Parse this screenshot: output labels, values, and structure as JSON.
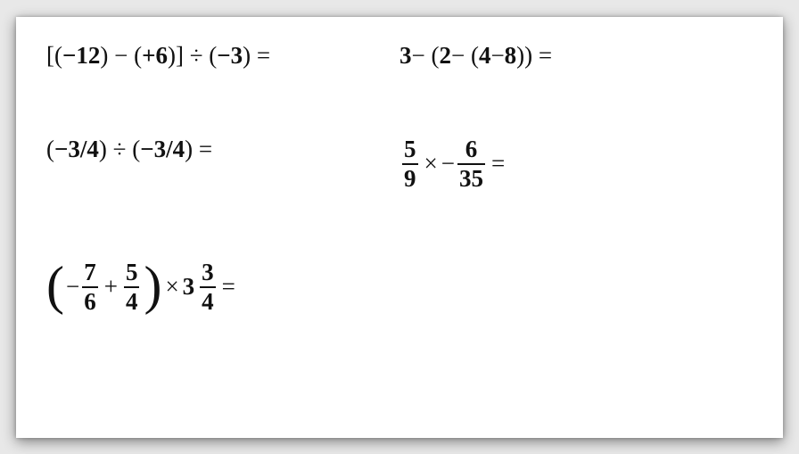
{
  "card": {
    "background_color": "#ffffff",
    "shadow": "0 4px 14px rgba(0,0,0,0.45)",
    "font_family": "Cambria Math / serif",
    "text_color": "#111111",
    "font_size_pt": 20
  },
  "problems": {
    "p1": {
      "text": "[(−12) − (+6)] ÷ (−3) =",
      "parts": {
        "lbr": "[(",
        "n1": "−12",
        "r1": ") − (",
        "n2": "+6",
        "r2": ")] ÷ (",
        "n3": "−3",
        "r3": ") ="
      }
    },
    "p2": {
      "text": "3 − (2 − (4 − 8)) =",
      "parts": {
        "a": "3",
        "s1": " − (",
        "b": "2",
        "s2": " − (",
        "c": "4",
        "s3": " − ",
        "d": "8",
        "s4": ")) ="
      }
    },
    "p3": {
      "text": "(−3/4) ÷ (−3/4) =",
      "parts": {
        "l1": "(",
        "n1": "−3/4",
        "r1": ") ÷ (",
        "n2": "−3/4",
        "r2": ") ="
      }
    },
    "p4": {
      "text": "5/9 × −6/35 =",
      "f1_num": "5",
      "f1_den": "9",
      "times": "×",
      "neg": "−",
      "f2_num": "6",
      "f2_den": "35",
      "eq": "="
    },
    "p5": {
      "text": "(−7/6 + 5/4) × 3 3/4 =",
      "neg": "−",
      "f1_num": "7",
      "f1_den": "6",
      "plus": "+",
      "f2_num": "5",
      "f2_den": "4",
      "times": "×",
      "whole": "3",
      "f3_num": "3",
      "f3_den": "4",
      "eq": "="
    }
  }
}
